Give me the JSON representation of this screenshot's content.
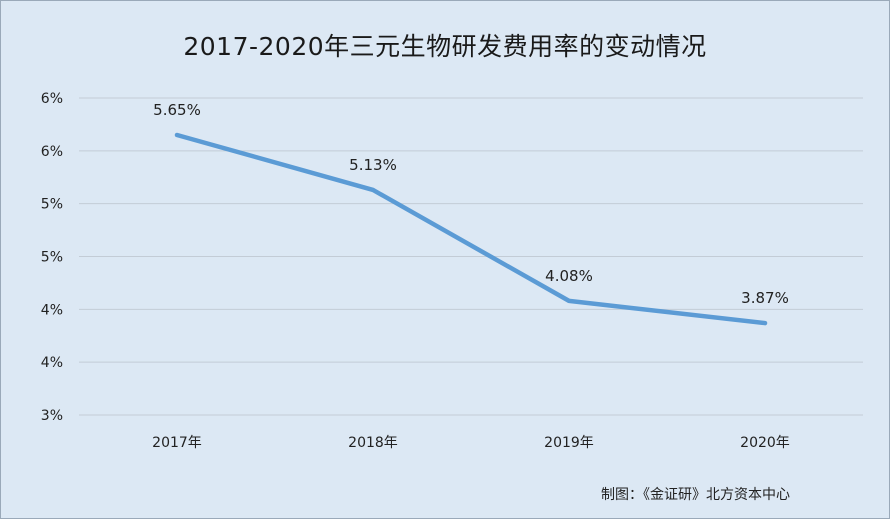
{
  "chart_data": {
    "type": "line",
    "title": "2017-2020年三元生物研发费用率的变动情况",
    "source": "制图：《金证研》北方资本中心",
    "categories": [
      "2017年",
      "2018年",
      "2019年",
      "2020年"
    ],
    "series": [
      {
        "values": [
          5.65,
          5.13,
          4.08,
          3.87
        ],
        "data_labels": [
          "5.65%",
          "5.13%",
          "4.08%",
          "3.87%"
        ],
        "color": "#5b9bd5"
      }
    ],
    "y_ticks": [
      {
        "value": 3.0,
        "label": "3%"
      },
      {
        "value": 3.5,
        "label": "4%"
      },
      {
        "value": 4.0,
        "label": "4%"
      },
      {
        "value": 4.5,
        "label": "5%"
      },
      {
        "value": 5.0,
        "label": "5%"
      },
      {
        "value": 5.5,
        "label": "6%"
      },
      {
        "value": 6.0,
        "label": "6%"
      }
    ],
    "ylim": [
      3.0,
      6.0
    ],
    "grid": true,
    "xlabel": "",
    "ylabel": ""
  }
}
